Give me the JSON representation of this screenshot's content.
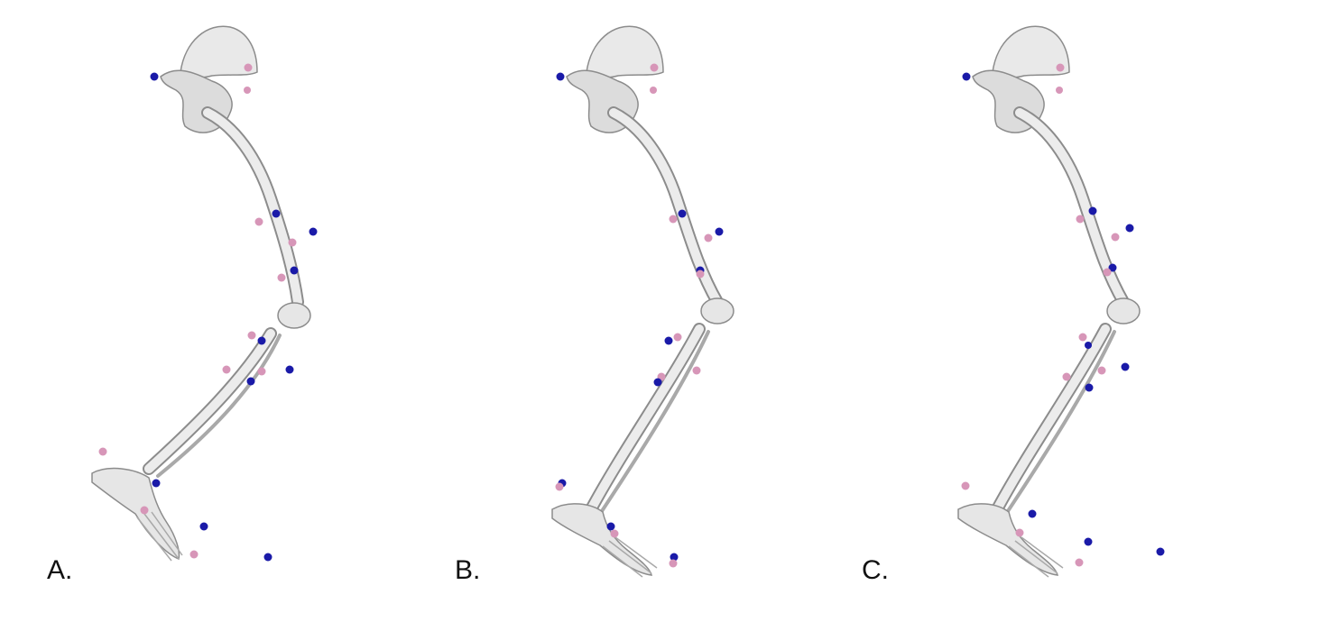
{
  "panels": [
    {
      "id": "A",
      "label": "A."
    },
    {
      "id": "B",
      "label": "B."
    },
    {
      "id": "C",
      "label": "C."
    }
  ],
  "colors": {
    "background": "#ffffff",
    "bone_fill": "#e9e9e9",
    "bone_stroke": "#8c8c8c",
    "bone_shadow": "#a9a9a9",
    "marker_blue": "#1a1aa8",
    "marker_pink": "#d796b8"
  },
  "marker_types": [
    "blue-marker",
    "pink-marker"
  ]
}
